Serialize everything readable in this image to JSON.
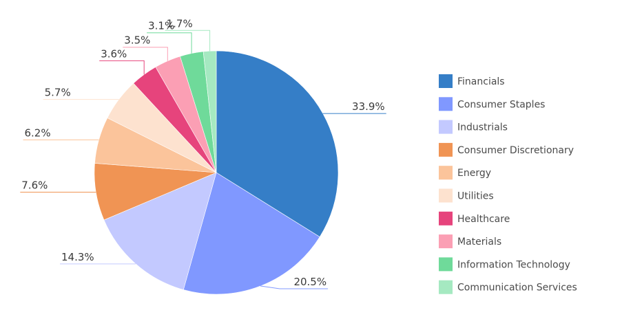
{
  "chart_data": {
    "type": "pie",
    "title": "",
    "legend_position": "right",
    "categories": [
      "Financials",
      "Consumer Staples",
      "Industrials",
      "Consumer Discretionary",
      "Energy",
      "Utilities",
      "Healthcare",
      "Materials",
      "Information Technology",
      "Communication Services"
    ],
    "values": [
      33.9,
      20.5,
      14.3,
      7.6,
      6.2,
      5.7,
      3.6,
      3.5,
      3.1,
      1.7
    ],
    "data_labels": [
      "33.9%",
      "20.5%",
      "14.3%",
      "7.6%",
      "6.2%",
      "5.7%",
      "3.6%",
      "3.5%",
      "3.1%",
      "1.7%"
    ],
    "colors": [
      "#357ec7",
      "#8098ff",
      "#c3c9ff",
      "#f09454",
      "#fbc49b",
      "#fde2cf",
      "#e6447c",
      "#fb9fb4",
      "#6fda9a",
      "#a5e9c1"
    ]
  }
}
